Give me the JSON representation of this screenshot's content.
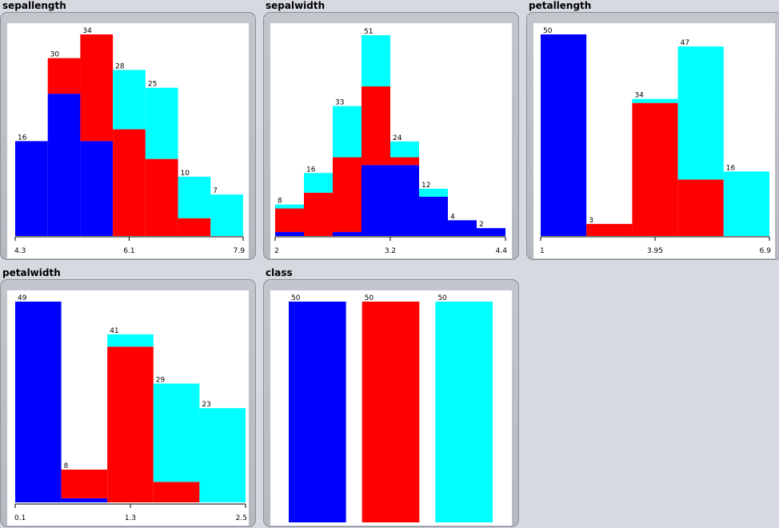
{
  "colors": {
    "setosa": "#0000ff",
    "versicolor": "#ff0000",
    "virginica": "#00ffff"
  },
  "chart_data": [
    {
      "type": "bar",
      "title": "sepallength",
      "ticks": [
        "4.3",
        "6.1",
        "7.9"
      ],
      "totals": [
        16,
        30,
        34,
        28,
        25,
        10,
        7
      ],
      "series": [
        {
          "values": [
            16,
            24,
            16,
            0,
            0,
            0,
            0
          ]
        },
        {
          "values": [
            0,
            6,
            18,
            18,
            13,
            3,
            0
          ]
        },
        {
          "values": [
            0,
            0,
            0,
            10,
            12,
            7,
            7
          ]
        }
      ]
    },
    {
      "type": "bar",
      "title": "sepalwidth",
      "ticks": [
        "2",
        "3.2",
        "4.4"
      ],
      "totals": [
        8,
        16,
        33,
        51,
        24,
        12,
        4,
        2
      ],
      "series": [
        {
          "values": [
            1,
            0,
            1,
            18,
            18,
            10,
            4,
            2
          ]
        },
        {
          "values": [
            6,
            11,
            19,
            20,
            2,
            0,
            0,
            0
          ]
        },
        {
          "values": [
            1,
            5,
            13,
            13,
            4,
            2,
            0,
            0
          ]
        }
      ]
    },
    {
      "type": "bar",
      "title": "petallength",
      "ticks": [
        "1",
        "3.95",
        "6.9"
      ],
      "totals": [
        50,
        3,
        34,
        47,
        16
      ],
      "series": [
        {
          "values": [
            50,
            0,
            0,
            0,
            0
          ]
        },
        {
          "values": [
            0,
            3,
            33,
            14,
            0
          ]
        },
        {
          "values": [
            0,
            0,
            1,
            33,
            16
          ]
        }
      ]
    },
    {
      "type": "bar",
      "title": "petalwidth",
      "ticks": [
        "0.1",
        "1.3",
        "2.5"
      ],
      "totals": [
        49,
        8,
        41,
        29,
        23
      ],
      "series": [
        {
          "values": [
            49,
            1,
            0,
            0,
            0
          ]
        },
        {
          "values": [
            0,
            7,
            38,
            5,
            0
          ]
        },
        {
          "values": [
            0,
            0,
            3,
            24,
            23
          ]
        }
      ]
    },
    {
      "type": "bar",
      "title": "class",
      "ticks": [],
      "totals": [
        50,
        50,
        50
      ],
      "series": [
        {
          "values": [
            50,
            0,
            0
          ]
        },
        {
          "values": [
            0,
            50,
            0
          ]
        },
        {
          "values": [
            0,
            0,
            50
          ]
        }
      ]
    }
  ]
}
